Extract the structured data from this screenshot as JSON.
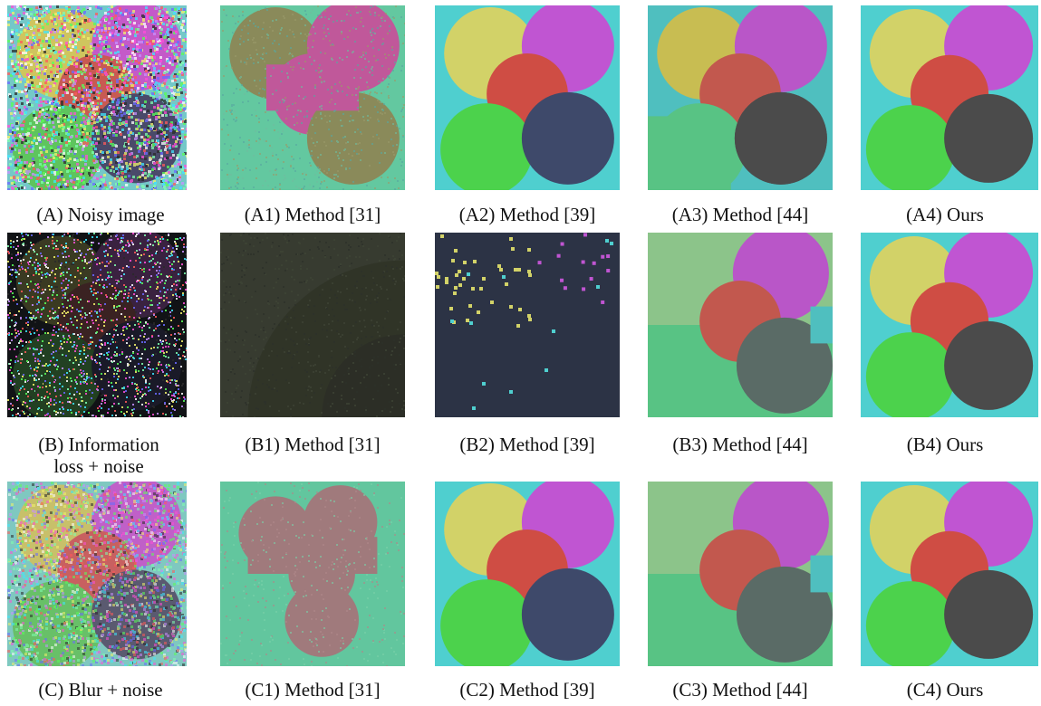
{
  "colors": {
    "background": "#ffffff",
    "teal": "#4fcfcf",
    "yellow": "#d2d268",
    "magenta": "#c055d2",
    "red": "#cf4d44",
    "green": "#4cd24c",
    "navy": "#3e496a",
    "dark_gray": "#4b4b4b",
    "mint": "#58c384",
    "olive": "#8a8a5a",
    "pink": "#c0589a",
    "sage": "#8cc48a",
    "slate": "#5a6b66",
    "dusty_rose": "#a07a7c",
    "dark_olive": "#373b30",
    "midnight": "#2c3345"
  },
  "rows": [
    {
      "id": "A",
      "panels": [
        {
          "id": "A",
          "caption": "(A) Noisy image",
          "kind": "noisy"
        },
        {
          "id": "A1",
          "caption": "(A1) Method [31]",
          "kind": "method31_a"
        },
        {
          "id": "A2",
          "caption": "(A2) Method [39]",
          "kind": "method39"
        },
        {
          "id": "A3",
          "caption": "(A3) Method [44]",
          "kind": "method44_a"
        },
        {
          "id": "A4",
          "caption": "(A4) Ours",
          "kind": "ours"
        }
      ]
    },
    {
      "id": "B",
      "panels": [
        {
          "id": "B",
          "caption": "(B) Information loss + noise",
          "kind": "info_loss"
        },
        {
          "id": "B1",
          "caption": "(B1) Method [31]",
          "kind": "method31_b"
        },
        {
          "id": "B2",
          "caption": "(B2) Method [39]",
          "kind": "method39_b"
        },
        {
          "id": "B3",
          "caption": "(B3) Method [44]",
          "kind": "method44_b"
        },
        {
          "id": "B4",
          "caption": "(B4) Ours",
          "kind": "ours"
        }
      ]
    },
    {
      "id": "C",
      "panels": [
        {
          "id": "C",
          "caption": "(C) Blur + noise",
          "kind": "blur"
        },
        {
          "id": "C1",
          "caption": "(C1) Method [31]",
          "kind": "method31_c"
        },
        {
          "id": "C2",
          "caption": "(C2) Method [39]",
          "kind": "method39_c"
        },
        {
          "id": "C3",
          "caption": "(C3) Method [44]",
          "kind": "method44_c"
        },
        {
          "id": "C4",
          "caption": "(C4) Ours",
          "kind": "ours"
        }
      ]
    }
  ]
}
